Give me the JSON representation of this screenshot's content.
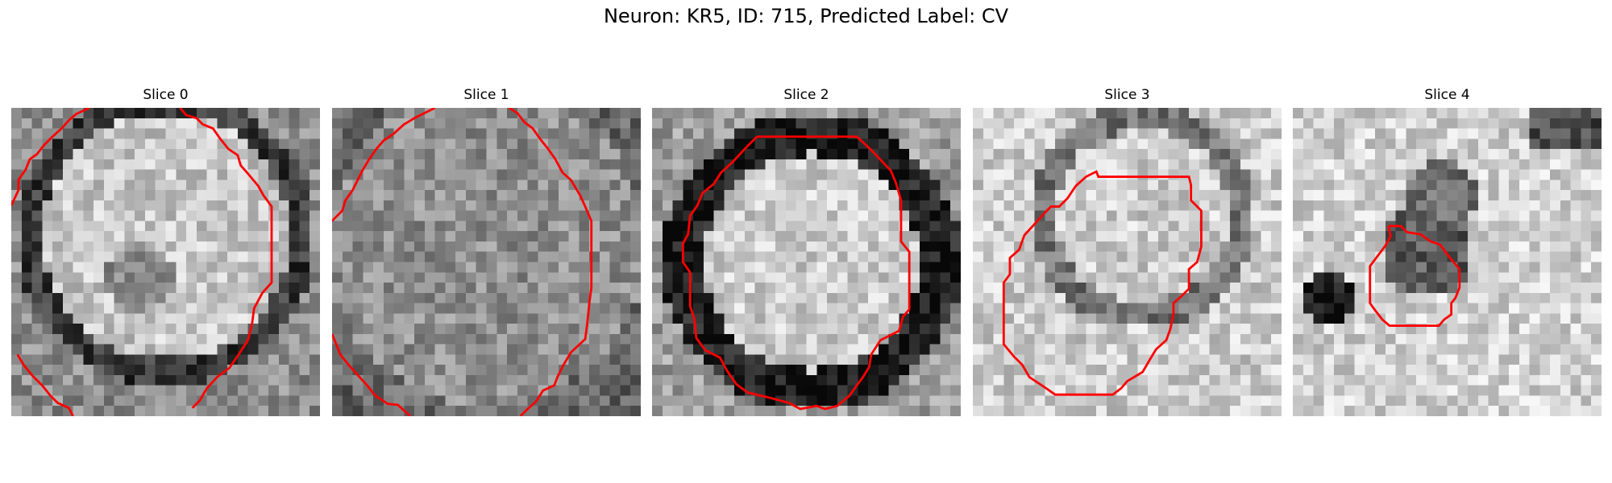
{
  "figure": {
    "title": "Neuron: KR5, ID: 715, Predicted Label: CV",
    "contour_color": "#ff0000",
    "colormap": "gray",
    "panels": [
      {
        "title": "Slice 0"
      },
      {
        "title": "Slice 1"
      },
      {
        "title": "Slice 2"
      },
      {
        "title": "Slice 3"
      },
      {
        "title": "Slice 4"
      }
    ]
  }
}
